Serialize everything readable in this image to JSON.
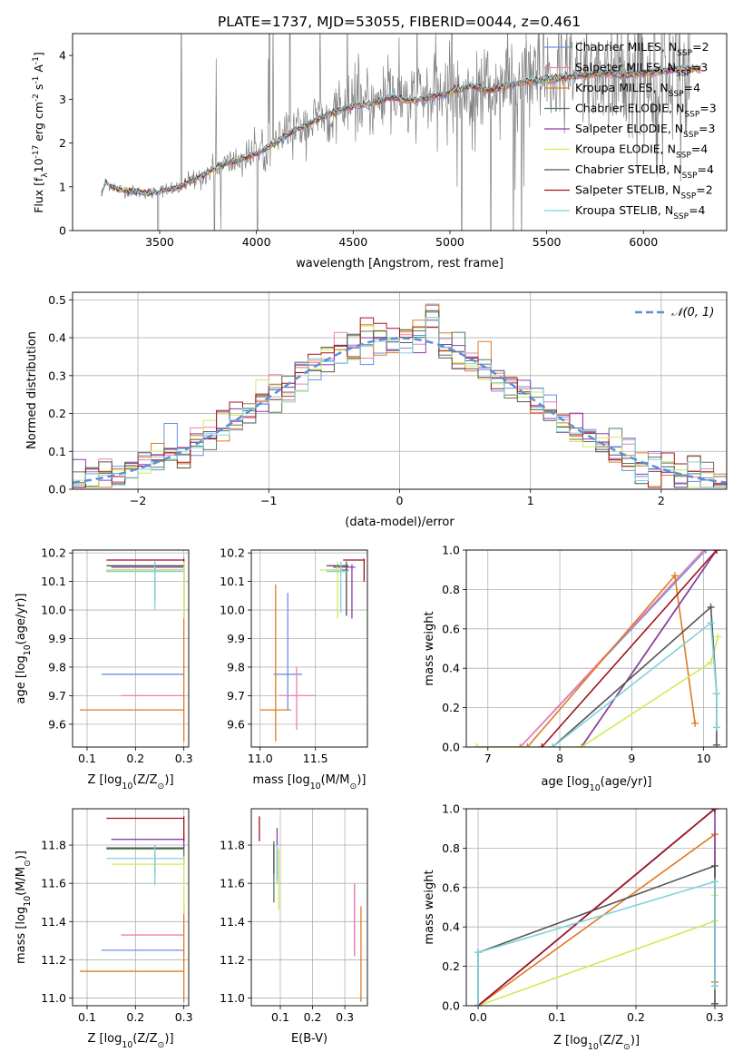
{
  "title": "PLATE=1737, MJD=53055, FIBERID=0044, z=0.461",
  "colors": {
    "miles_chabrier": "#6b8fe0",
    "miles_salpeter": "#ef7fb0",
    "miles_kroupa": "#e07a23",
    "elodie_chabrier": "#587a58",
    "elodie_salpeter": "#8e3ba8",
    "elodie_kroupa": "#d4e85a",
    "stelib_chabrier": "#555555",
    "stelib_salpeter": "#a0141e",
    "stelib_kroupa": "#7fd3dc",
    "data": "#808080",
    "normal": "#5b8fd6"
  },
  "legend_spec": [
    {
      "base": "Chabrier MILES, N",
      "sub": "SSP",
      "eq": "=2"
    },
    {
      "base": "Salpeter MILES, N",
      "sub": "SSP",
      "eq": "=3"
    },
    {
      "base": "Kroupa MILES, N",
      "sub": "SSP",
      "eq": "=4"
    },
    {
      "base": "Chabrier ELODIE, N",
      "sub": "SSP",
      "eq": "=3"
    },
    {
      "base": "Salpeter ELODIE, N",
      "sub": "SSP",
      "eq": "=3"
    },
    {
      "base": "Kroupa ELODIE, N",
      "sub": "SSP",
      "eq": "=4"
    },
    {
      "base": "Chabrier STELIB, N",
      "sub": "SSP",
      "eq": "=4"
    },
    {
      "base": "Salpeter STELIB, N",
      "sub": "SSP",
      "eq": "=2"
    },
    {
      "base": "Kroupa STELIB, N",
      "sub": "SSP",
      "eq": "=4"
    }
  ],
  "chart_data": [
    {
      "type": "line",
      "title": "PLATE=1737, MJD=53055, FIBERID=0044, z=0.461",
      "xlabel": "wavelength [Angstrom, rest frame]",
      "ylabel_parts": [
        "Flux [f",
        "λ",
        "10",
        "-17",
        " erg cm",
        "-2",
        " s",
        "-1",
        " A",
        "-1",
        "]"
      ],
      "xlim": [
        3050,
        6430
      ],
      "ylim": [
        0,
        4.5
      ],
      "xticks": [
        3500,
        4000,
        4500,
        5000,
        5500,
        6000
      ],
      "yticks": [
        0,
        1,
        2,
        3,
        4
      ],
      "grid": false,
      "legend": "upper right",
      "model_anchors": {
        "x": [
          3200,
          3220,
          3280,
          3350,
          3450,
          3600,
          3700,
          3800,
          3900,
          4000,
          4100,
          4200,
          4300,
          4400,
          4500,
          4600,
          4700,
          4800,
          4900,
          5000,
          5100,
          5200,
          5300,
          5400,
          5500,
          5600,
          5700,
          5800,
          5900,
          6000,
          6100,
          6200,
          6300
        ],
        "y": [
          0.85,
          1.1,
          0.95,
          0.9,
          0.85,
          1.0,
          1.2,
          1.45,
          1.6,
          1.75,
          2.0,
          2.3,
          2.5,
          2.7,
          2.85,
          2.9,
          3.05,
          2.95,
          3.05,
          3.15,
          3.3,
          3.2,
          3.3,
          3.4,
          3.45,
          3.5,
          3.55,
          3.6,
          3.55,
          3.6,
          3.65,
          3.7,
          3.7
        ]
      },
      "data_start_x": 3210,
      "data_end_x": 6240
    },
    {
      "type": "bar",
      "subtype": "step histogram",
      "xlabel": "(data-model)/error",
      "ylabel": "Normed distribution",
      "xlim": [
        -2.5,
        2.5
      ],
      "ylim": [
        0,
        0.52
      ],
      "xticks": [
        -2,
        -1,
        0,
        1,
        2
      ],
      "xtick_labels": [
        "−2",
        "−1",
        "0",
        "1",
        "2"
      ],
      "yticks": [
        0.0,
        0.1,
        0.2,
        0.3,
        0.4,
        0.5
      ],
      "grid": true,
      "legend": "upper right",
      "reference_curve": {
        "name": "𝒩(0, 1)",
        "mean": 0,
        "sigma": 1,
        "style": "dashed"
      },
      "bin_width": 0.1
    },
    {
      "type": "scatter",
      "xlabel_parts": [
        "Z [log",
        "10",
        "(Z/Z",
        "⊙",
        ")]"
      ],
      "ylabel_parts": [
        "age  [log",
        "10",
        "(age/yr)]"
      ],
      "xlim": [
        0.07,
        0.31
      ],
      "ylim": [
        9.52,
        10.21
      ],
      "xticks": [
        0.1,
        0.2,
        0.3
      ],
      "yticks": [
        9.6,
        9.7,
        9.8,
        9.9,
        10.0,
        10.1,
        10.2
      ],
      "grid": true,
      "points": [
        {
          "series": "miles_chabrier",
          "x": 0.24,
          "y": 9.775,
          "xerr": [
            0.13,
            0.3
          ],
          "yerr": [
            9.775,
            9.775
          ]
        },
        {
          "series": "miles_salpeter",
          "x": 0.3,
          "y": 9.7,
          "xerr": [
            0.17,
            0.3
          ],
          "yerr": [
            9.7,
            9.7
          ]
        },
        {
          "series": "miles_kroupa",
          "x": 0.3,
          "y": 9.65,
          "xerr": [
            0.085,
            0.3
          ],
          "yerr": [
            9.54,
            10.1
          ]
        },
        {
          "series": "elodie_chabrier",
          "x": 0.3,
          "y": 10.14,
          "xerr": [
            0.14,
            0.3
          ],
          "yerr": [
            9.98,
            10.16
          ]
        },
        {
          "series": "elodie_salpeter",
          "x": 0.3,
          "y": 10.15,
          "xerr": [
            0.15,
            0.3
          ],
          "yerr": [
            10.1,
            10.17
          ]
        },
        {
          "series": "elodie_kroupa",
          "x": 0.3,
          "y": 10.14,
          "xerr": [
            0.14,
            0.3
          ],
          "yerr": [
            9.97,
            10.17
          ]
        },
        {
          "series": "stelib_chabrier",
          "x": 0.24,
          "y": 10.155,
          "xerr": [
            0.14,
            0.3
          ],
          "yerr": [
            10.03,
            10.17
          ]
        },
        {
          "series": "stelib_salpeter",
          "x": 0.3,
          "y": 10.175,
          "xerr": [
            0.14,
            0.3
          ],
          "yerr": [
            10.17,
            10.18
          ]
        },
        {
          "series": "stelib_kroupa",
          "x": 0.24,
          "y": 10.135,
          "xerr": [
            0.14,
            0.3
          ],
          "yerr": [
            10.0,
            10.17
          ]
        }
      ]
    },
    {
      "type": "scatter",
      "xlabel_parts": [
        "mass [log",
        "10",
        "(M/M",
        "⊙",
        ")]"
      ],
      "xlim": [
        10.92,
        11.97
      ],
      "ylim": [
        9.52,
        10.21
      ],
      "xticks": [
        11.0,
        11.5
      ],
      "yticks": [
        9.6,
        9.7,
        9.8,
        9.9,
        10.0,
        10.1,
        10.2
      ],
      "grid": true,
      "points": [
        {
          "series": "miles_chabrier",
          "x": 11.25,
          "y": 9.775,
          "xerr": [
            11.12,
            11.38
          ],
          "yerr": [
            9.65,
            10.06
          ]
        },
        {
          "series": "miles_salpeter",
          "x": 11.33,
          "y": 9.7,
          "xerr": [
            11.17,
            11.5
          ],
          "yerr": [
            9.58,
            9.8
          ]
        },
        {
          "series": "miles_kroupa",
          "x": 11.14,
          "y": 9.65,
          "xerr": [
            11.0,
            11.28
          ],
          "yerr": [
            9.54,
            10.09
          ]
        },
        {
          "series": "elodie_chabrier",
          "x": 11.78,
          "y": 10.14,
          "xerr": [
            11.6,
            11.8
          ],
          "yerr": [
            9.98,
            10.16
          ]
        },
        {
          "series": "elodie_salpeter",
          "x": 11.83,
          "y": 10.15,
          "xerr": [
            11.66,
            11.86
          ],
          "yerr": [
            9.97,
            10.16
          ]
        },
        {
          "series": "elodie_kroupa",
          "x": 11.7,
          "y": 10.14,
          "xerr": [
            11.54,
            11.74
          ],
          "yerr": [
            9.97,
            10.17
          ]
        },
        {
          "series": "stelib_chabrier",
          "x": 11.78,
          "y": 10.155,
          "xerr": [
            11.6,
            11.8
          ],
          "yerr": [
            9.98,
            10.17
          ]
        },
        {
          "series": "stelib_salpeter",
          "x": 11.94,
          "y": 10.175,
          "xerr": [
            11.75,
            11.94
          ],
          "yerr": [
            10.1,
            10.18
          ]
        },
        {
          "series": "stelib_kroupa",
          "x": 11.73,
          "y": 10.135,
          "xerr": [
            11.6,
            11.8
          ],
          "yerr": [
            9.99,
            10.17
          ]
        }
      ]
    },
    {
      "type": "line",
      "subtype": "cumulative",
      "xlabel_parts": [
        "age  [log",
        "10",
        "(age/yr)]"
      ],
      "ylabel": "mass weight",
      "xlim": [
        6.7,
        10.32
      ],
      "ylim": [
        0,
        1.0
      ],
      "xticks": [
        7,
        8,
        9,
        10
      ],
      "yticks": [
        0.0,
        0.2,
        0.4,
        0.6,
        0.8,
        1.0
      ],
      "grid": true,
      "series": [
        {
          "name": "miles_chabrier",
          "x": [
            7.45,
            10.03
          ],
          "y": [
            0,
            1.0
          ]
        },
        {
          "name": "miles_salpeter",
          "x": [
            7.45,
            10.0
          ],
          "y": [
            0,
            1.0
          ]
        },
        {
          "name": "miles_kroupa",
          "x": [
            6.85,
            7.55,
            9.6,
            9.88
          ],
          "y": [
            0,
            0,
            0.87,
            0.12
          ]
        },
        {
          "name": "elodie_chabrier",
          "x": [
            8.3,
            10.18
          ],
          "y": [
            0,
            1.0
          ]
        },
        {
          "name": "elodie_salpeter",
          "x": [
            8.3,
            10.18
          ],
          "y": [
            0,
            1.0
          ]
        },
        {
          "name": "elodie_kroupa",
          "x": [
            6.85,
            8.3,
            10.1,
            10.2
          ],
          "y": [
            0,
            0,
            0.43,
            0.56
          ]
        },
        {
          "name": "stelib_chabrier",
          "x": [
            7.9,
            10.1,
            10.18,
            10.18
          ],
          "y": [
            0,
            0.71,
            0.27,
            0.01
          ]
        },
        {
          "name": "stelib_salpeter",
          "x": [
            7.75,
            10.18
          ],
          "y": [
            0,
            1.0
          ]
        },
        {
          "name": "stelib_kroupa",
          "x": [
            7.9,
            10.1,
            10.18,
            10.18
          ],
          "y": [
            0,
            0.63,
            0.27,
            0.1
          ]
        }
      ]
    },
    {
      "type": "scatter",
      "xlabel_parts": [
        "Z [log",
        "10",
        "(Z/Z",
        "⊙",
        ")]"
      ],
      "ylabel_parts": [
        "mass [log",
        "10",
        "(M/M",
        "⊙",
        ")]"
      ],
      "xlim": [
        0.07,
        0.31
      ],
      "ylim": [
        10.96,
        11.99
      ],
      "xticks": [
        0.1,
        0.2,
        0.3
      ],
      "yticks": [
        11.0,
        11.2,
        11.4,
        11.6,
        11.8
      ],
      "grid": true,
      "points": [
        {
          "series": "miles_chabrier",
          "x": 0.3,
          "y": 11.25,
          "xerr": [
            0.13,
            0.3
          ],
          "yerr": [
            11.25,
            11.25
          ]
        },
        {
          "series": "miles_salpeter",
          "x": 0.3,
          "y": 11.33,
          "xerr": [
            0.17,
            0.3
          ],
          "yerr": [
            11.33,
            11.33
          ]
        },
        {
          "series": "miles_kroupa",
          "x": 0.3,
          "y": 11.14,
          "xerr": [
            0.085,
            0.3
          ],
          "yerr": [
            10.98,
            11.5
          ]
        },
        {
          "series": "elodie_chabrier",
          "x": 0.3,
          "y": 11.78,
          "xerr": [
            0.14,
            0.3
          ],
          "yerr": [
            11.7,
            11.8
          ]
        },
        {
          "series": "elodie_salpeter",
          "x": 0.3,
          "y": 11.83,
          "xerr": [
            0.15,
            0.3
          ],
          "yerr": [
            11.78,
            11.86
          ]
        },
        {
          "series": "elodie_kroupa",
          "x": 0.3,
          "y": 11.7,
          "xerr": [
            0.15,
            0.3
          ],
          "yerr": [
            11.44,
            11.74
          ]
        },
        {
          "series": "stelib_chabrier",
          "x": 0.24,
          "y": 11.785,
          "xerr": [
            0.14,
            0.3
          ],
          "yerr": [
            11.64,
            11.8
          ]
        },
        {
          "series": "stelib_salpeter",
          "x": 0.3,
          "y": 11.94,
          "xerr": [
            0.14,
            0.3
          ],
          "yerr": [
            11.82,
            11.95
          ]
        },
        {
          "series": "stelib_kroupa",
          "x": 0.24,
          "y": 11.73,
          "xerr": [
            0.14,
            0.3
          ],
          "yerr": [
            11.59,
            11.8
          ]
        }
      ]
    },
    {
      "type": "scatter",
      "xlabel": "E(B-V)",
      "xlim": [
        0.01,
        0.37
      ],
      "ylim": [
        10.96,
        11.99
      ],
      "xticks": [
        0.1,
        0.2,
        0.3
      ],
      "yticks": [
        11.0,
        11.2,
        11.4,
        11.6,
        11.8
      ],
      "grid": true,
      "points": [
        {
          "series": "miles_chabrier",
          "x": 0.33,
          "y": 11.25,
          "xerr": [
            0.33,
            0.33
          ],
          "yerr": [
            11.22,
            11.6
          ]
        },
        {
          "series": "miles_salpeter",
          "x": 0.33,
          "y": 11.33,
          "xerr": [
            0.33,
            0.33
          ],
          "yerr": [
            11.22,
            11.6
          ]
        },
        {
          "series": "miles_kroupa",
          "x": 0.35,
          "y": 11.14,
          "xerr": [
            0.35,
            0.35
          ],
          "yerr": [
            10.98,
            11.48
          ]
        },
        {
          "series": "elodie_chabrier",
          "x": 0.08,
          "y": 11.78,
          "xerr": [
            0.08,
            0.08
          ],
          "yerr": [
            11.5,
            11.82
          ]
        },
        {
          "series": "elodie_salpeter",
          "x": 0.09,
          "y": 11.83,
          "xerr": [
            0.09,
            0.09
          ],
          "yerr": [
            11.62,
            11.89
          ]
        },
        {
          "series": "elodie_kroupa",
          "x": 0.095,
          "y": 11.7,
          "xerr": [
            0.095,
            0.095
          ],
          "yerr": [
            11.46,
            11.78
          ]
        },
        {
          "series": "stelib_chabrier",
          "x": 0.08,
          "y": 11.785,
          "xerr": [
            0.08,
            0.08
          ],
          "yerr": [
            11.65,
            11.8
          ]
        },
        {
          "series": "stelib_salpeter",
          "x": 0.035,
          "y": 11.94,
          "xerr": [
            0.035,
            0.035
          ],
          "yerr": [
            11.82,
            11.95
          ]
        },
        {
          "series": "stelib_kroupa",
          "x": 0.09,
          "y": 11.73,
          "xerr": [
            0.09,
            0.09
          ],
          "yerr": [
            11.6,
            11.8
          ]
        }
      ]
    },
    {
      "type": "line",
      "subtype": "cumulative",
      "xlabel_parts": [
        "Z [log",
        "10",
        "(Z/Z",
        "⊙",
        ")]"
      ],
      "ylabel": "mass weight",
      "xlim": [
        -0.015,
        0.315
      ],
      "ylim": [
        0,
        1.0
      ],
      "xticks": [
        0.0,
        0.1,
        0.2,
        0.3
      ],
      "yticks": [
        0.0,
        0.2,
        0.4,
        0.6,
        0.8,
        1.0
      ],
      "grid": true,
      "series": [
        {
          "name": "miles_chabrier",
          "x": [
            0,
            0.3
          ],
          "y": [
            0,
            1.0
          ]
        },
        {
          "name": "miles_salpeter",
          "x": [
            0,
            0.3
          ],
          "y": [
            0,
            1.0
          ]
        },
        {
          "name": "miles_kroupa",
          "x": [
            0,
            0.3,
            0.3
          ],
          "y": [
            0,
            0.87,
            0.12
          ]
        },
        {
          "name": "elodie_chabrier",
          "x": [
            0,
            0.3
          ],
          "y": [
            0,
            1.0
          ]
        },
        {
          "name": "elodie_salpeter",
          "x": [
            0,
            0.3,
            0.3
          ],
          "y": [
            0,
            1.0,
            0.1
          ]
        },
        {
          "name": "elodie_kroupa",
          "x": [
            0,
            0.3,
            0.3
          ],
          "y": [
            0,
            0.43,
            0.56
          ]
        },
        {
          "name": "stelib_chabrier",
          "x": [
            0,
            0,
            0.3,
            0.3
          ],
          "y": [
            0,
            0.27,
            0.71,
            0.01
          ]
        },
        {
          "name": "stelib_salpeter",
          "x": [
            0,
            0.3
          ],
          "y": [
            0,
            1.0
          ]
        },
        {
          "name": "stelib_kroupa",
          "x": [
            0,
            0,
            0.3,
            0.3
          ],
          "y": [
            0,
            0.27,
            0.63,
            0.1
          ]
        }
      ]
    }
  ]
}
